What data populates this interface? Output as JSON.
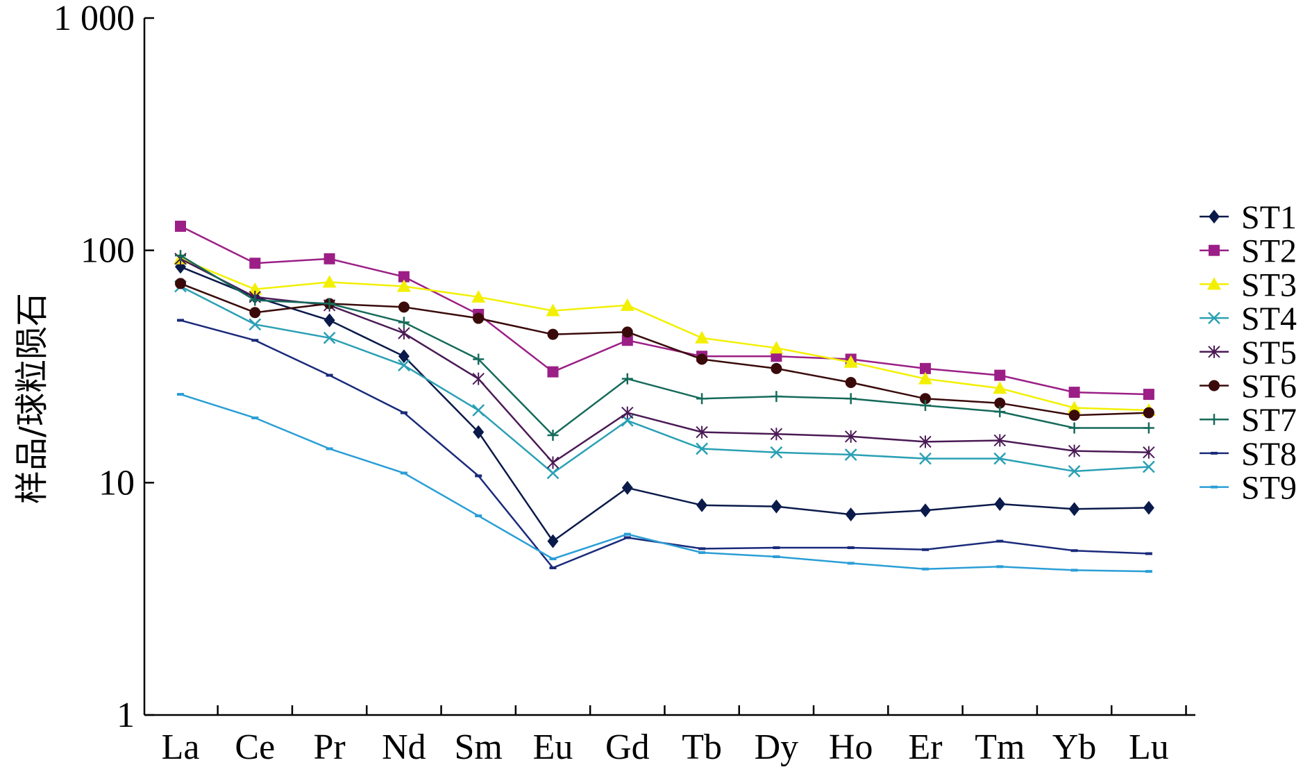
{
  "chart_data": {
    "type": "line",
    "title": "",
    "xlabel": "",
    "ylabel": "样品/球粒陨石",
    "yscale": "log",
    "ylim": [
      1,
      1000
    ],
    "ytick_labels": [
      "1",
      "10",
      "100",
      "1 000"
    ],
    "ytick_values": [
      1,
      10,
      100,
      1000
    ],
    "categories": [
      "La",
      "Ce",
      "Pr",
      "Nd",
      "Sm",
      "Eu",
      "Gd",
      "Tb",
      "Dy",
      "Ho",
      "Er",
      "Tm",
      "Yb",
      "Lu"
    ],
    "legend_position": "right",
    "grid": false,
    "series": [
      {
        "name": "ST1",
        "color": "#0a1a4a",
        "marker": "diamond",
        "values": [
          85,
          63,
          50,
          35,
          16.5,
          5.6,
          9.5,
          8.0,
          7.9,
          7.3,
          7.6,
          8.1,
          7.7,
          7.8
        ]
      },
      {
        "name": "ST2",
        "color": "#9b1f86",
        "marker": "square",
        "values": [
          127,
          88,
          92,
          77,
          53,
          30,
          41,
          35,
          35,
          34,
          31,
          29,
          24.5,
          24
        ]
      },
      {
        "name": "ST3",
        "color": "#f2f000",
        "marker": "triangle",
        "values": [
          92,
          68,
          73,
          70,
          63,
          55,
          58,
          42,
          38,
          33,
          28,
          25.5,
          21,
          20.5
        ]
      },
      {
        "name": "ST4",
        "color": "#2aa0b4",
        "marker": "x",
        "values": [
          70,
          48,
          42,
          32,
          20.5,
          11,
          18.5,
          14,
          13.5,
          13.2,
          12.7,
          12.7,
          11.2,
          11.7
        ]
      },
      {
        "name": "ST5",
        "color": "#4a1a55",
        "marker": "star",
        "values": [
          92,
          63,
          58,
          44,
          28,
          12.2,
          20,
          16.5,
          16.2,
          15.8,
          15,
          15.2,
          13.7,
          13.5
        ]
      },
      {
        "name": "ST6",
        "color": "#3a0a0a",
        "marker": "circle",
        "values": [
          72,
          54,
          59,
          57,
          51,
          43.5,
          44.5,
          34,
          31,
          27,
          23,
          22,
          19.5,
          20
        ]
      },
      {
        "name": "ST7",
        "color": "#156a5a",
        "marker": "plus",
        "values": [
          95,
          61,
          59,
          49,
          34,
          16,
          28,
          23,
          23.5,
          23,
          21.5,
          20.2,
          17.2,
          17.2
        ]
      },
      {
        "name": "ST8",
        "color": "#1a2a7a",
        "marker": "dash",
        "values": [
          50,
          41,
          29,
          20,
          10.7,
          4.3,
          5.8,
          5.2,
          5.25,
          5.25,
          5.15,
          5.6,
          5.1,
          4.95
        ]
      },
      {
        "name": "ST9",
        "color": "#2a9ed6",
        "marker": "dash",
        "values": [
          24,
          19,
          14,
          11,
          7.2,
          4.7,
          6.0,
          5.0,
          4.8,
          4.5,
          4.25,
          4.35,
          4.2,
          4.15
        ]
      }
    ]
  }
}
